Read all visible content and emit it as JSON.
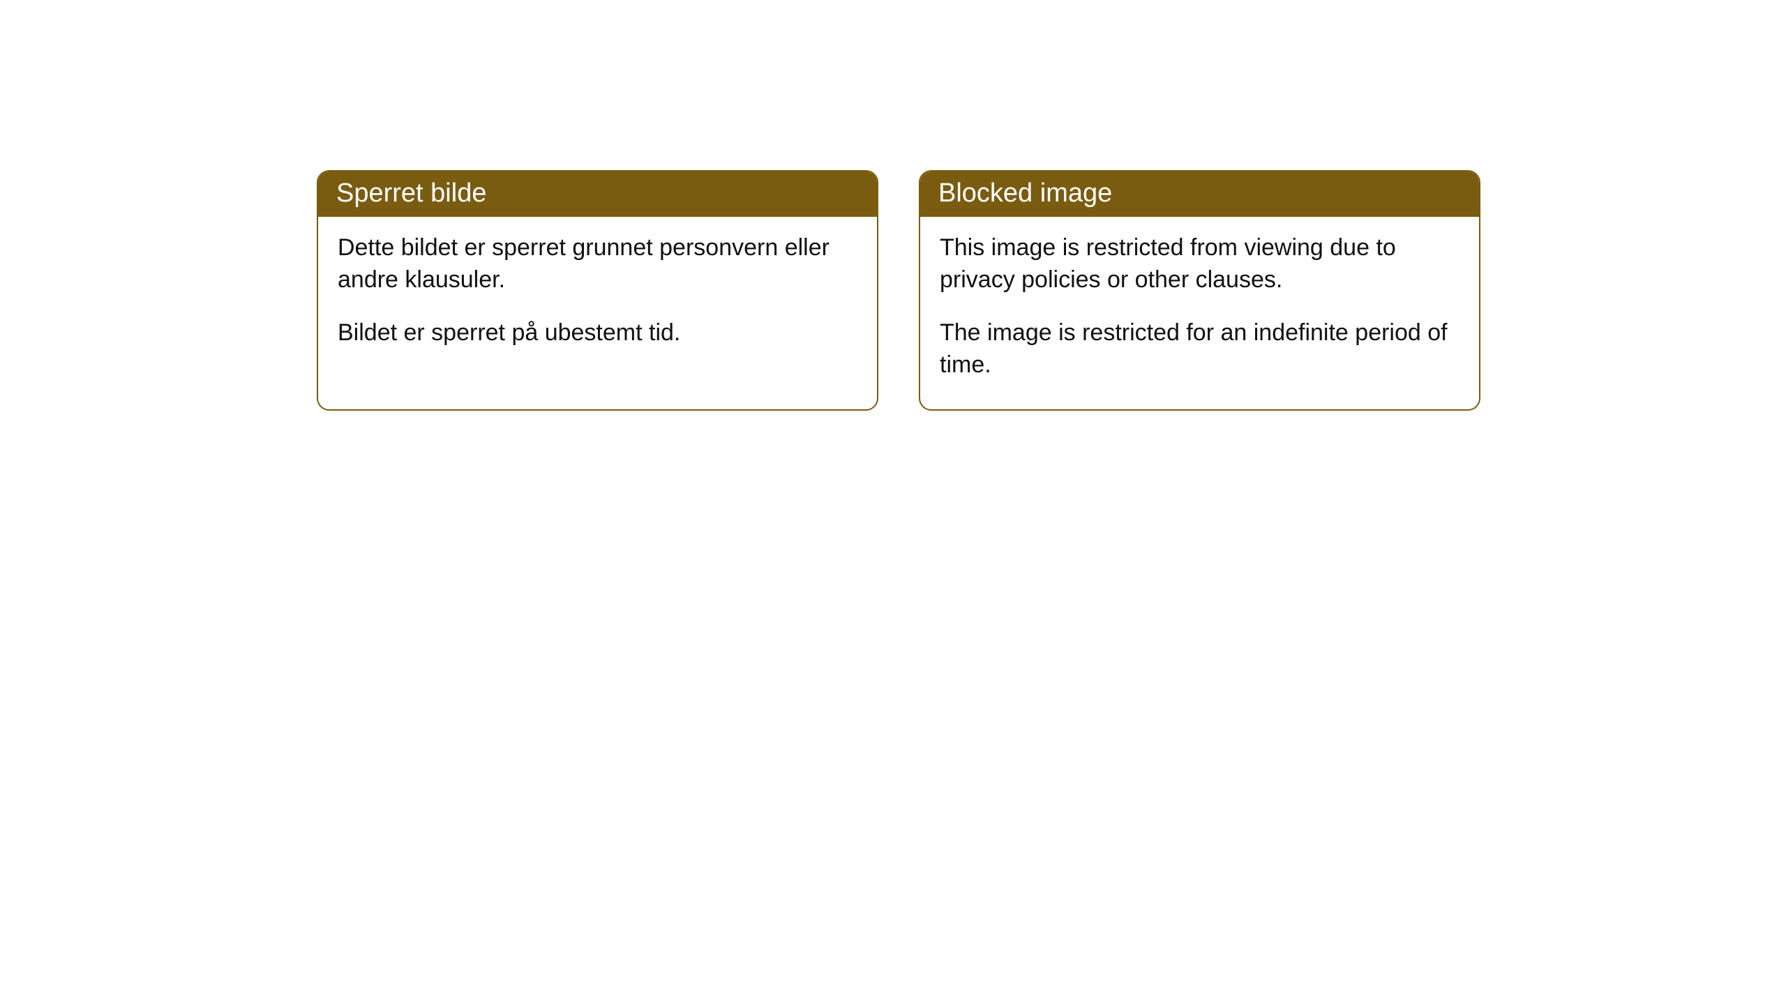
{
  "cards": [
    {
      "title": "Sperret bilde",
      "para1": "Dette bildet er sperret grunnet personvern eller andre klausuler.",
      "para2": "Bildet er sperret på ubestemt tid."
    },
    {
      "title": "Blocked image",
      "para1": "This image is restricted from viewing due to privacy policies or other clauses.",
      "para2": "The image is restricted for an indefinite period of time."
    }
  ],
  "style": {
    "header_bg": "#7a5c10",
    "header_text_color": "#ffffff",
    "border_color": "#7a5c10",
    "body_bg": "#ffffff",
    "body_text_color": "#111111",
    "border_radius": 18,
    "title_fontsize": 38,
    "body_fontsize": 34
  }
}
